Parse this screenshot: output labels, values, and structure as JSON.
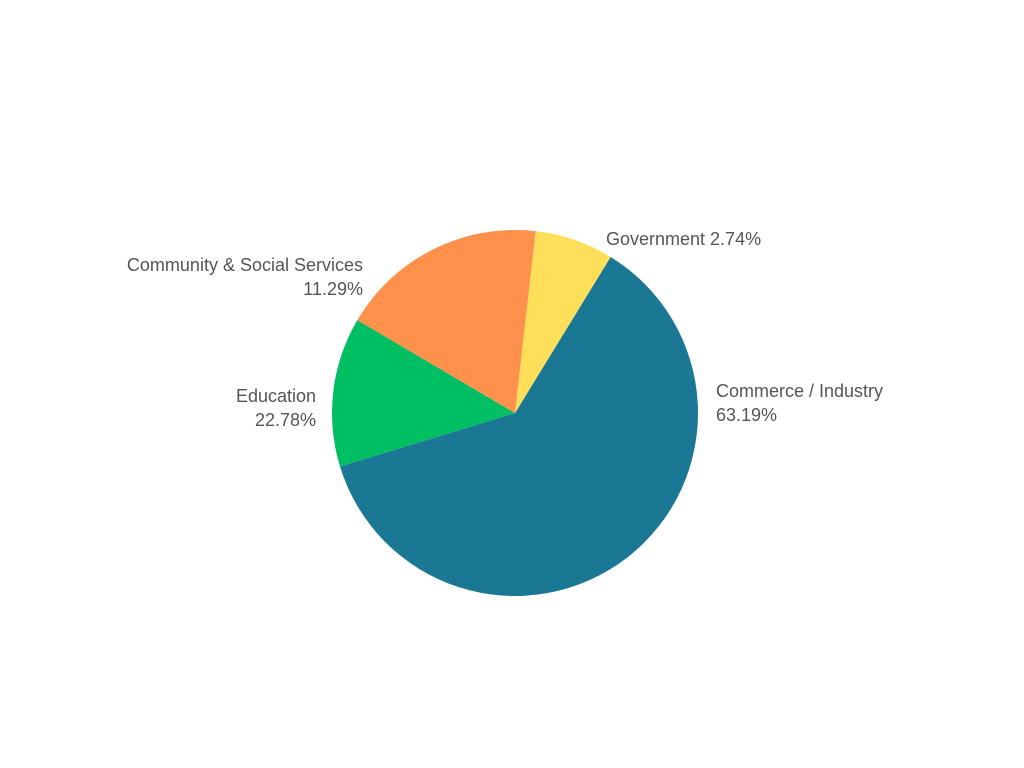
{
  "chart_data": {
    "type": "pie",
    "title": "",
    "slices": [
      {
        "label": "Commerce / Industry",
        "percent_text": "63.19%",
        "value": 63.19,
        "color": "#1b7895"
      },
      {
        "label": "Education",
        "percent_text": "22.78%",
        "value": 22.78,
        "color": "#00bf63"
      },
      {
        "label": "Community & Social Services",
        "percent_text": "11.29%",
        "value": 11.29,
        "color": "#ff914d"
      },
      {
        "label": "Government",
        "percent_text": "2.74%",
        "value": 2.74,
        "color": "#ffde59"
      }
    ],
    "legend": false
  }
}
